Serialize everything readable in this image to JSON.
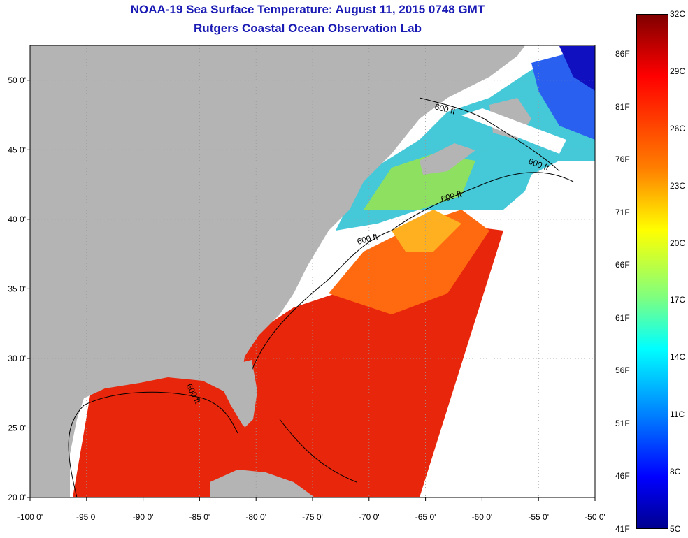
{
  "title": "NOAA-19 Sea Surface Temperature:  August 11, 2015 0748 GMT",
  "subtitle": "Rutgers Coastal Ocean Observation Lab",
  "axes": {
    "x_ticks": [
      "-100 0'",
      "-95 0'",
      "-90 0'",
      "-85 0'",
      "-80 0'",
      "-75 0'",
      "-70 0'",
      "-65 0'",
      "-60 0'",
      "-55 0'",
      "-50 0'"
    ],
    "y_ticks": [
      "50 0'",
      "45 0'",
      "40 0'",
      "35 0'",
      "30 0'",
      "25 0'",
      "20 0'"
    ],
    "lon_range": [
      -100,
      -50
    ],
    "lat_range": [
      20,
      52.5
    ]
  },
  "contours": [
    {
      "label": "600 ft"
    },
    {
      "label": "600 ft"
    },
    {
      "label": "600 ft"
    },
    {
      "label": "600 ft"
    },
    {
      "label": "600 ft"
    }
  ],
  "colorbar": {
    "celsius": [
      "32C",
      "29C",
      "26C",
      "23C",
      "20C",
      "17C",
      "14C",
      "11C",
      "8C",
      "5C"
    ],
    "fahrenheit": [
      "86F",
      "81F",
      "76F",
      "71F",
      "66F",
      "61F",
      "56F",
      "51F",
      "46F",
      "41F"
    ],
    "colors": [
      "#7f0000",
      "#ff0000",
      "#ff7f00",
      "#ffff00",
      "#7fff7f",
      "#00ffff",
      "#007fff",
      "#0000ff",
      "#00008f"
    ]
  },
  "colors": {
    "land": "#b4b4b4",
    "no_data": "#ffffff",
    "title": "#1a1ab4"
  }
}
